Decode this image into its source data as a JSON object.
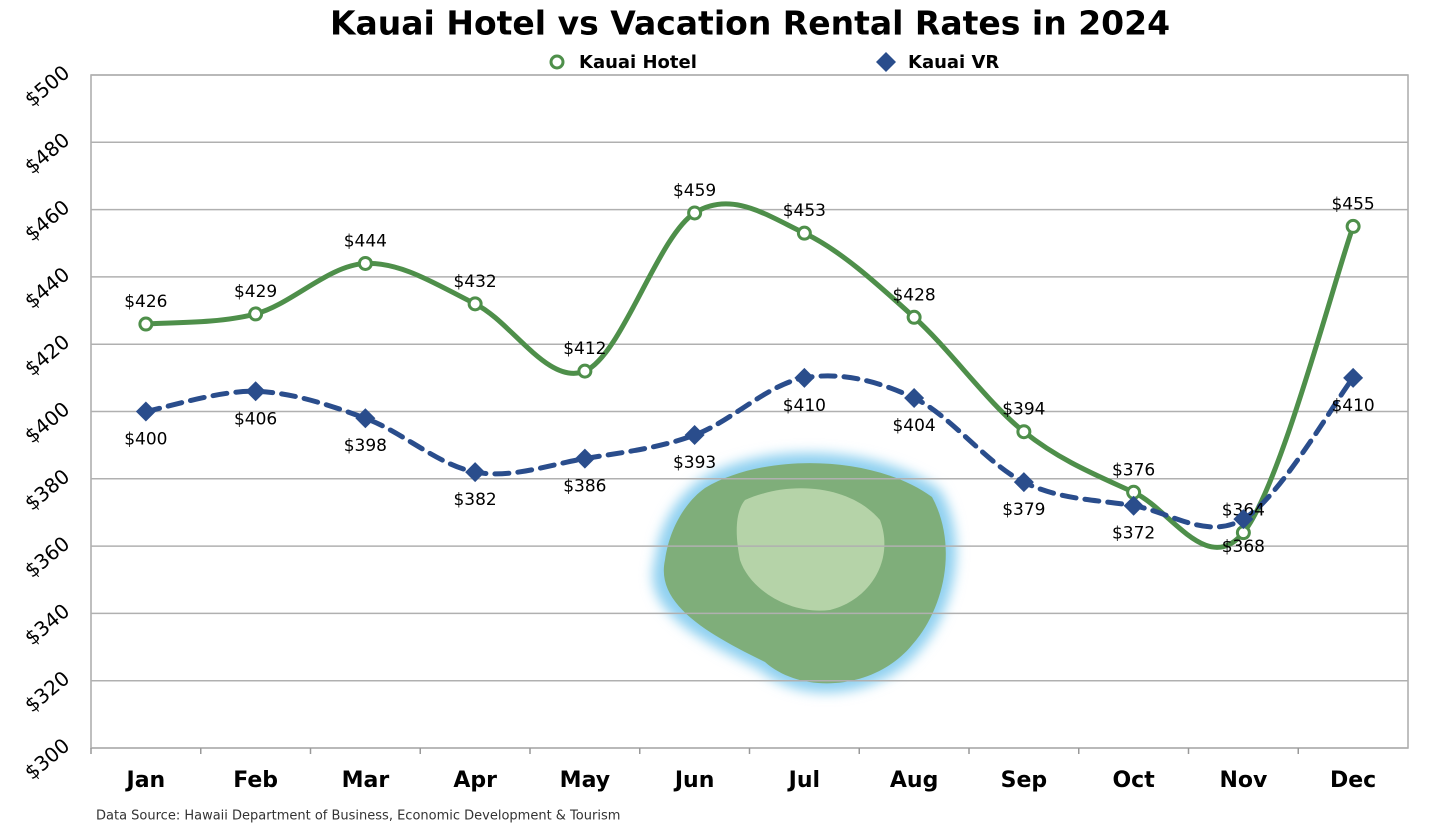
{
  "chart_data": {
    "type": "line",
    "title": "Kauai Hotel vs Vacation Rental Rates in 2024",
    "source": "Data Source: Hawaii Department of Business, Economic Development & Tourism",
    "categories": [
      "Jan",
      "Feb",
      "Mar",
      "Apr",
      "May",
      "Jun",
      "Jul",
      "Aug",
      "Sep",
      "Oct",
      "Nov",
      "Dec"
    ],
    "series": [
      {
        "name": "Kauai Hotel",
        "color": "#4e8f4a",
        "marker": "circle",
        "dashed": false,
        "values": [
          426,
          429,
          444,
          432,
          412,
          459,
          453,
          428,
          394,
          376,
          364,
          455
        ],
        "value_labels": [
          "$426",
          "$429",
          "$444",
          "$432",
          "$412",
          "$459",
          "$453",
          "$428",
          "$394",
          "$376",
          "$364",
          "$455"
        ]
      },
      {
        "name": "Kauai VR",
        "color": "#2a4d8c",
        "marker": "diamond",
        "dashed": true,
        "values": [
          400,
          406,
          398,
          382,
          386,
          393,
          410,
          404,
          379,
          372,
          368,
          410
        ],
        "value_labels": [
          "$400",
          "$406",
          "$398",
          "$382",
          "$386",
          "$393",
          "$410",
          "$404",
          "$379",
          "$372",
          "$368",
          "$410"
        ]
      }
    ],
    "ylim": [
      300,
      500
    ],
    "yticks": [
      {
        "value": 300,
        "label": "$300"
      },
      {
        "value": 320,
        "label": "$320"
      },
      {
        "value": 340,
        "label": "$340"
      },
      {
        "value": 360,
        "label": "$360"
      },
      {
        "value": 380,
        "label": "$380"
      },
      {
        "value": 400,
        "label": "$400"
      },
      {
        "value": 420,
        "label": "$420"
      },
      {
        "value": 440,
        "label": "$440"
      },
      {
        "value": 460,
        "label": "$460"
      },
      {
        "value": 480,
        "label": "$480"
      },
      {
        "value": 500,
        "label": "$500"
      }
    ],
    "grid": true,
    "smooth": true
  }
}
